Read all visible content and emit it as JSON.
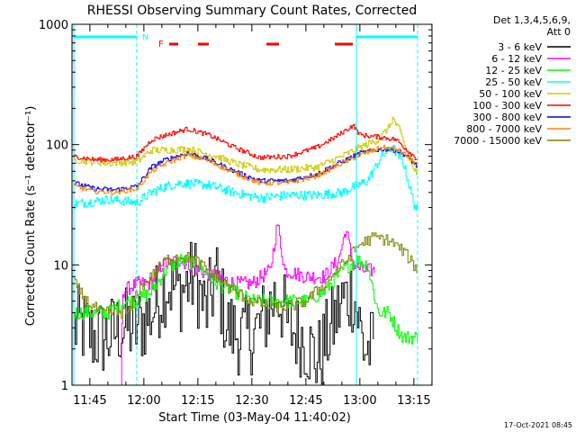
{
  "chart_data": {
    "type": "line",
    "title": "RHESSI Observing Summary Count Rates, Corrected",
    "xlabel": "Start Time (03-May-04 11:40:02)",
    "ylabel": "Corrected Count Rate (s⁻¹ detector⁻¹)",
    "y_scale": "log",
    "ylim": [
      1,
      1000
    ],
    "xlim_minutes_since_start": [
      0,
      100
    ],
    "x_tick_labels": [
      "11:45",
      "12:00",
      "12:15",
      "12:30",
      "12:45",
      "13:00",
      "13:15"
    ],
    "y_tick_labels": [
      "1",
      "10",
      "100",
      "1000"
    ],
    "legend_header": "Det 1,3,4,5,6,9,",
    "legend_header2": "Att 0",
    "legend_placement": "right",
    "footer_date": "17-Oct-2021 08:45",
    "night_marker": "N",
    "flare_marker": "F",
    "series": [
      {
        "name": "3 - 6 keV",
        "color": "#000000"
      },
      {
        "name": "6 - 12 keV",
        "color": "#ff00ff"
      },
      {
        "name": "12 - 25 keV",
        "color": "#00ff00"
      },
      {
        "name": "25 - 50 keV",
        "color": "#00ffff"
      },
      {
        "name": "50 - 100 keV",
        "color": "#cccc00"
      },
      {
        "name": "100 - 300 keV",
        "color": "#ff0000"
      },
      {
        "name": "300 - 800 keV",
        "color": "#0000ff"
      },
      {
        "name": "800 - 7000 keV",
        "color": "#ff8800"
      },
      {
        "name": "7000 - 15000 keV",
        "color": "#808000"
      }
    ]
  }
}
